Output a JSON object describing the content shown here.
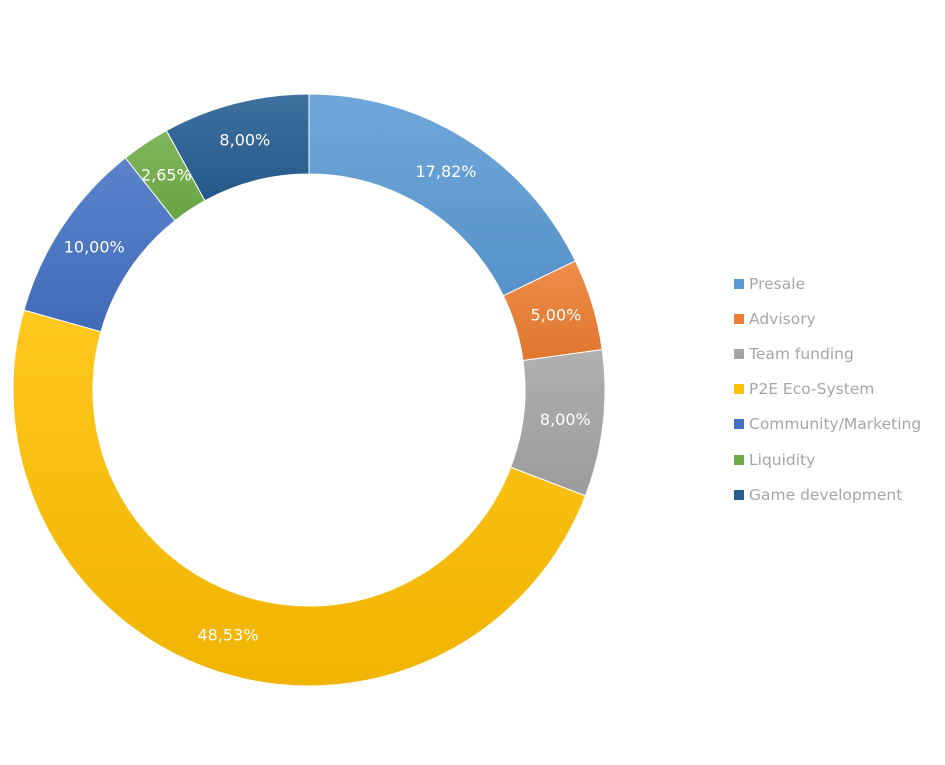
{
  "chart_data": {
    "type": "pie",
    "style": "donut",
    "title": "",
    "legend_position": "right",
    "slices": [
      {
        "label": "Presale",
        "value": 17.82,
        "display": "17,82%",
        "color": "#5b9bd5"
      },
      {
        "label": "Advisory",
        "value": 5.0,
        "display": "5,00%",
        "color": "#ed7d31"
      },
      {
        "label": "Team funding",
        "value": 8.0,
        "display": "8,00%",
        "color": "#a5a5a5"
      },
      {
        "label": "P2E Eco-System",
        "value": 48.53,
        "display": "48,53%",
        "color": "#ffc000"
      },
      {
        "label": "Community/Marketing",
        "value": 10.0,
        "display": "10,00%",
        "color": "#4472c4"
      },
      {
        "label": "Liquidity",
        "value": 2.65,
        "display": "2,65%",
        "color": "#70ad47"
      },
      {
        "label": "Game development",
        "value": 8.0,
        "display": "8,00%",
        "color": "#255e91"
      }
    ]
  }
}
